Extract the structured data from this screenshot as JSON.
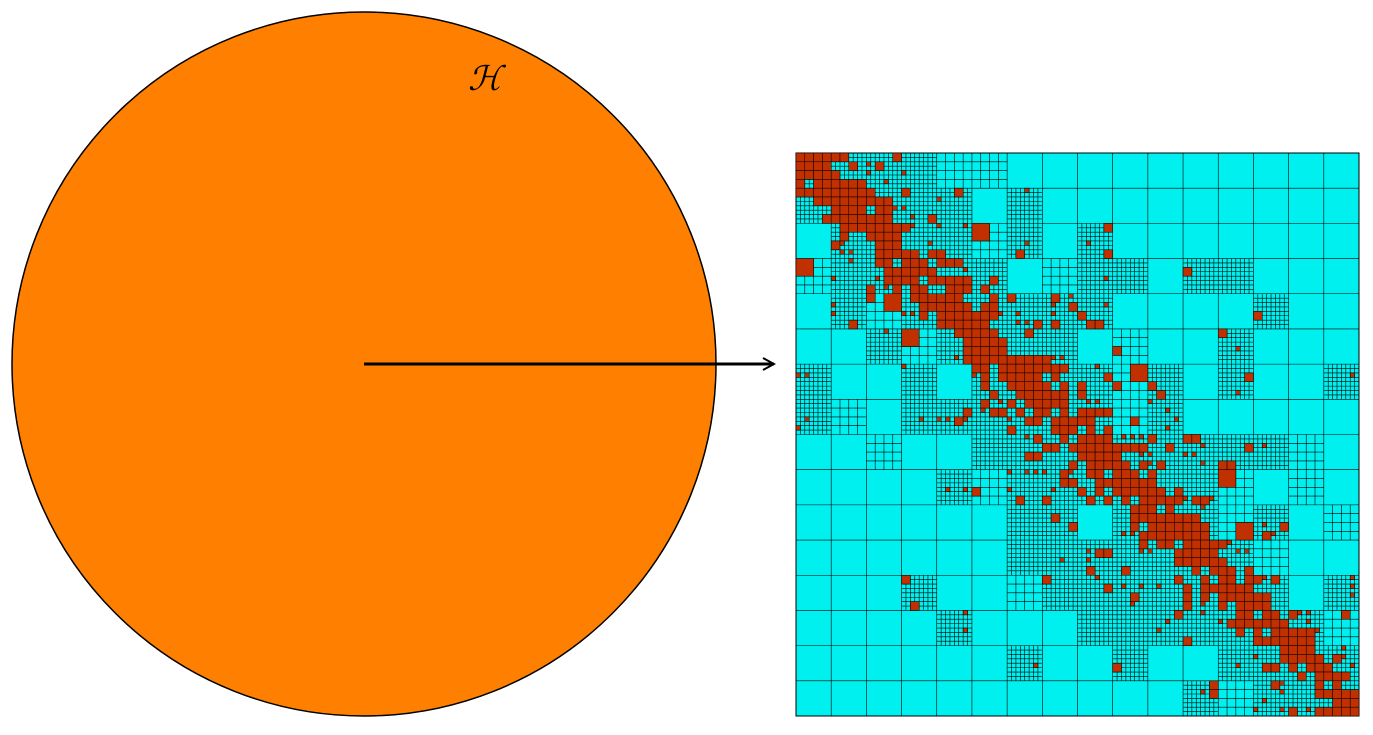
{
  "space_label": "ℋ",
  "colors": {
    "ball_fill": "#FF8000",
    "ball_stroke": "#000000",
    "matrix_background": "#00F0F0",
    "dense_block": "#C03000",
    "grid_line": "#000000",
    "arrow": "#000000",
    "page_background": "#FFFFFF"
  },
  "matrix": {
    "coarse_blocks_per_side": 16,
    "description_levels": [
      "coarse",
      "medium",
      "fine"
    ]
  }
}
